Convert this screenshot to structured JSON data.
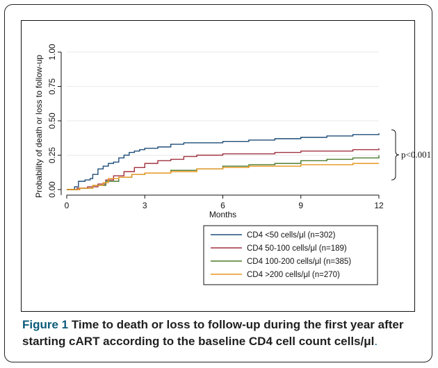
{
  "caption": {
    "label": "Figure 1",
    "text": "Time to death or loss to follow-up during the first year after starting cART according to the baseline CD4 cell count cells/μl",
    "period": "."
  },
  "chart_data": {
    "type": "line",
    "title": "",
    "xlabel": "Months",
    "ylabel": "Probability of death or loss to follow-up",
    "xlim": [
      0,
      12
    ],
    "ylim": [
      0,
      1
    ],
    "xticks": [
      0,
      3,
      6,
      9,
      12
    ],
    "yticks": [
      0,
      0.25,
      0.5,
      0.75,
      1
    ],
    "ytick_labels": [
      "0.00",
      "0.25",
      "0.50",
      "0.75",
      "1.00"
    ],
    "grid": "horizontal",
    "legend_position": "bottom-right",
    "annotation": "p<0.001",
    "series": [
      {
        "name": "CD4 <50 cells/μl (n=302)",
        "color": "#1f4e79",
        "points": [
          [
            0,
            0
          ],
          [
            0.3,
            0.02
          ],
          [
            0.45,
            0.06
          ],
          [
            0.7,
            0.07
          ],
          [
            0.9,
            0.08
          ],
          [
            1.0,
            0.11
          ],
          [
            1.2,
            0.15
          ],
          [
            1.4,
            0.17
          ],
          [
            1.6,
            0.19
          ],
          [
            1.8,
            0.2
          ],
          [
            2.0,
            0.23
          ],
          [
            2.2,
            0.25
          ],
          [
            2.4,
            0.27
          ],
          [
            2.6,
            0.28
          ],
          [
            2.8,
            0.29
          ],
          [
            3.0,
            0.3
          ],
          [
            3.5,
            0.31
          ],
          [
            4.0,
            0.33
          ],
          [
            4.5,
            0.34
          ],
          [
            5.0,
            0.34
          ],
          [
            6.0,
            0.35
          ],
          [
            7.0,
            0.36
          ],
          [
            8.0,
            0.37
          ],
          [
            9.0,
            0.38
          ],
          [
            10.0,
            0.39
          ],
          [
            11.0,
            0.4
          ],
          [
            12.0,
            0.41
          ]
        ]
      },
      {
        "name": "CD4 50-100 cells/μl (n=189)",
        "color": "#a0313f",
        "points": [
          [
            0,
            0
          ],
          [
            0.4,
            0.01
          ],
          [
            0.8,
            0.02
          ],
          [
            1.2,
            0.04
          ],
          [
            1.5,
            0.07
          ],
          [
            1.8,
            0.1
          ],
          [
            2.2,
            0.13
          ],
          [
            2.6,
            0.16
          ],
          [
            3.0,
            0.19
          ],
          [
            3.5,
            0.21
          ],
          [
            4.0,
            0.22
          ],
          [
            4.5,
            0.24
          ],
          [
            5.0,
            0.25
          ],
          [
            6.0,
            0.26
          ],
          [
            7.0,
            0.26
          ],
          [
            8.0,
            0.27
          ],
          [
            9.0,
            0.28
          ],
          [
            10.0,
            0.28
          ],
          [
            11.0,
            0.29
          ],
          [
            12.0,
            0.3
          ]
        ]
      },
      {
        "name": "CD4 100-200 cells/μl (n=385)",
        "color": "#4a7a2c",
        "points": [
          [
            0,
            0
          ],
          [
            0.5,
            0.01
          ],
          [
            1.0,
            0.03
          ],
          [
            1.5,
            0.06
          ],
          [
            2.0,
            0.09
          ],
          [
            2.5,
            0.11
          ],
          [
            3.0,
            0.12
          ],
          [
            4.0,
            0.14
          ],
          [
            5.0,
            0.15
          ],
          [
            6.0,
            0.17
          ],
          [
            7.0,
            0.18
          ],
          [
            8.0,
            0.19
          ],
          [
            9.0,
            0.21
          ],
          [
            10.0,
            0.22
          ],
          [
            11.0,
            0.23
          ],
          [
            12.0,
            0.25
          ]
        ]
      },
      {
        "name": "CD4 >200 cells/μl (n=270)",
        "color": "#e8951e",
        "points": [
          [
            0,
            0
          ],
          [
            0.5,
            0.01
          ],
          [
            1.0,
            0.03
          ],
          [
            1.4,
            0.05
          ],
          [
            1.6,
            0.08
          ],
          [
            2.0,
            0.09
          ],
          [
            2.5,
            0.11
          ],
          [
            3.0,
            0.12
          ],
          [
            4.0,
            0.13
          ],
          [
            5.0,
            0.15
          ],
          [
            6.0,
            0.16
          ],
          [
            7.0,
            0.17
          ],
          [
            8.0,
            0.17
          ],
          [
            9.0,
            0.18
          ],
          [
            10.0,
            0.18
          ],
          [
            11.0,
            0.19
          ],
          [
            12.0,
            0.19
          ]
        ]
      }
    ]
  }
}
